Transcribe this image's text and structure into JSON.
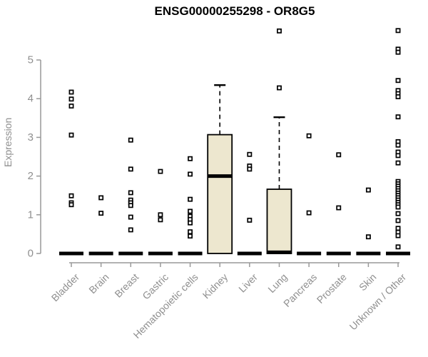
{
  "window": {
    "title": "ENSG00000255298 - OR8G5"
  },
  "chart_data": {
    "type": "boxplot",
    "title": "ENSG00000255298 - OR8G5",
    "ylabel": "Expression",
    "xlabel": "",
    "yticks": [
      0,
      1,
      2,
      3,
      4,
      5
    ],
    "ylim": [
      0,
      5.9
    ],
    "grid": false,
    "legend": false,
    "categories": [
      "Bladder",
      "Brain",
      "Breast",
      "Gastric",
      "Hematopoietic cells",
      "Kidney",
      "Liver",
      "Lung",
      "Pancreas",
      "Prostate",
      "Skin",
      "Unknown / Other"
    ],
    "boxes": [
      {
        "category": "Bladder",
        "q1": 0,
        "median": 0,
        "q3": 0,
        "whisker_low": 0,
        "whisker_high": 0,
        "outliers": [
          4.17,
          3.99,
          3.81,
          3.06,
          1.49,
          1.31,
          1.26
        ]
      },
      {
        "category": "Brain",
        "q1": 0,
        "median": 0,
        "q3": 0,
        "whisker_low": 0,
        "whisker_high": 0,
        "outliers": [
          1.44,
          1.04
        ]
      },
      {
        "category": "Breast",
        "q1": 0,
        "median": 0,
        "q3": 0,
        "whisker_low": 0,
        "whisker_high": 0,
        "outliers": [
          2.93,
          2.18,
          1.57,
          1.38,
          1.31,
          1.24,
          0.94,
          0.61
        ]
      },
      {
        "category": "Gastric",
        "q1": 0,
        "median": 0,
        "q3": 0,
        "whisker_low": 0,
        "whisker_high": 0,
        "outliers": [
          2.12,
          1.0,
          0.87
        ]
      },
      {
        "category": "Hematopoietic cells",
        "q1": 0,
        "median": 0,
        "q3": 0,
        "whisker_low": 0,
        "whisker_high": 0,
        "outliers": [
          2.45,
          2.05,
          1.4,
          1.09,
          0.96,
          0.88,
          0.79,
          0.56,
          0.45
        ]
      },
      {
        "category": "Kidney",
        "q1": 0,
        "median": 2.0,
        "q3": 3.07,
        "whisker_low": 0,
        "whisker_high": 4.35,
        "outliers": []
      },
      {
        "category": "Liver",
        "q1": 0,
        "median": 0,
        "q3": 0,
        "whisker_low": 0,
        "whisker_high": 0,
        "outliers": [
          2.56,
          2.26,
          2.18,
          0.86
        ]
      },
      {
        "category": "Lung",
        "q1": 0,
        "median": 0.03,
        "q3": 1.66,
        "whisker_low": 0,
        "whisker_high": 3.52,
        "outliers": [
          5.75,
          4.28
        ]
      },
      {
        "category": "Pancreas",
        "q1": 0,
        "median": 0,
        "q3": 0,
        "whisker_low": 0,
        "whisker_high": 0,
        "outliers": [
          3.04,
          1.05
        ]
      },
      {
        "category": "Prostate",
        "q1": 0,
        "median": 0,
        "q3": 0,
        "whisker_low": 0,
        "whisker_high": 0,
        "outliers": [
          2.55,
          1.18
        ]
      },
      {
        "category": "Skin",
        "q1": 0,
        "median": 0,
        "q3": 0,
        "whisker_low": 0,
        "whisker_high": 0,
        "outliers": [
          1.64,
          0.43
        ]
      },
      {
        "category": "Unknown / Other",
        "q1": 0,
        "median": 0,
        "q3": 0,
        "whisker_low": 0,
        "whisker_high": 0,
        "outliers": [
          5.76,
          5.28,
          5.2,
          4.47,
          4.21,
          4.13,
          4.05,
          3.53,
          2.89,
          2.8,
          2.62,
          2.53,
          2.34,
          1.86,
          1.8,
          1.74,
          1.68,
          1.62,
          1.56,
          1.5,
          1.44,
          1.38,
          1.32,
          1.26,
          1.2,
          1.03,
          0.85,
          0.65,
          0.55,
          0.46,
          0.17
        ]
      }
    ],
    "colors": {
      "box_fill": "#EDE7CF",
      "box_stroke": "#000000",
      "median": "#000000",
      "whisker": "#000000",
      "outlier_fill": "#ffffff",
      "outlier_stroke": "#000000",
      "axis_line": "#999999",
      "axis_text": "#8f8f8f",
      "title": "#000000"
    }
  }
}
